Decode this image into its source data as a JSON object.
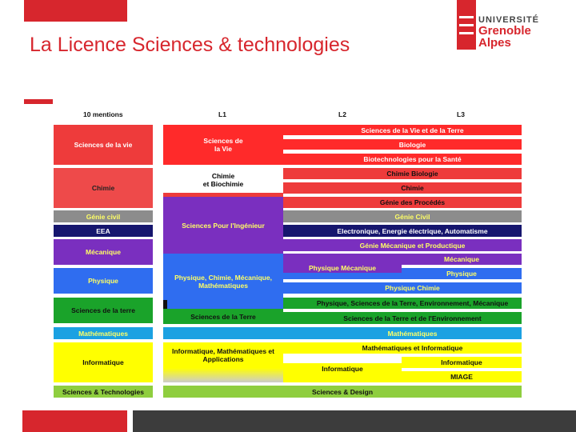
{
  "header": {
    "title": "La Licence Sciences & technologies",
    "logo": {
      "line1": "UNIVERSITÉ",
      "line2": "Grenoble",
      "line3": "Alpes"
    }
  },
  "colors": {
    "red": "#ee3b3b",
    "brightred": "#ff2a2a",
    "purple": "#7a2fbf",
    "gray": "#8c8c8c",
    "navy": "#16166e",
    "blue": "#2f6df0",
    "green": "#1aa32a",
    "cyan": "#1ba1e2",
    "yellow": "#ffff00",
    "olive": "#8fce3f",
    "accent": "#d7262d"
  },
  "table": {
    "headers": {
      "mentions": "10 mentions",
      "l1": "L1",
      "l2": "L2",
      "l3": "L3"
    },
    "mentions": [
      "Sciences de la vie",
      "Chimie",
      "Génie civil",
      "EEA",
      "Mécanique",
      "Physique",
      "Sciences de la terre",
      "Mathématiques",
      "Informatique",
      "Sciences & Technologies"
    ],
    "l1": [
      "Sciences de la Vie",
      "Chimie",
      "et Biochimie",
      "Sciences Pour l'Ingénieur",
      "Physique, Chimie, Mécanique, Mathématiques",
      "Sciences de la Terre",
      "Informatique, Mathématiques et Applications",
      "Sciences & Design"
    ],
    "l23": [
      "Sciences de la Vie et de la Terre",
      "Biologie",
      "Biotechnologies pour la Santé",
      "Chimie Biologie",
      "Chimie",
      "Génie des Procédés",
      "Génie Civil",
      "Electronique, Energie électrique, Automatisme",
      "Génie Mécanique et Productique",
      "Physique Mécanique",
      "Mécanique",
      "Physique",
      "Physique Chimie",
      "Physique, Sciences de la Terre, Environnement, Mécanique",
      "Sciences de la Terre et de l'Environnement",
      "Mathématiques",
      "Mathématiques et Informatique",
      "Informatique",
      "Informatique",
      "MIAGE"
    ]
  }
}
